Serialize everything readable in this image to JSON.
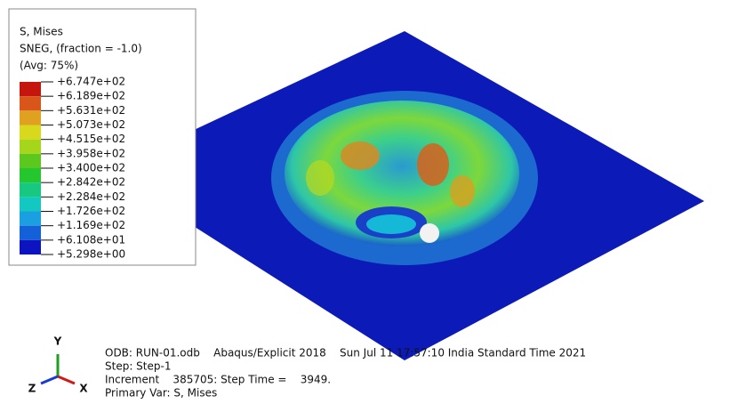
{
  "legend": {
    "title_lines": [
      "S, Mises",
      "SNEG, (fraction = -1.0)",
      "(Avg: 75%)"
    ],
    "labels": [
      "+6.747e+02",
      "+6.189e+02",
      "+5.631e+02",
      "+5.073e+02",
      "+4.515e+02",
      "+3.958e+02",
      "+3.400e+02",
      "+2.842e+02",
      "+2.284e+02",
      "+1.726e+02",
      "+1.169e+02",
      "+6.108e+01",
      "+5.298e+00"
    ],
    "colors": [
      "#c4160c",
      "#d9561a",
      "#e0a020",
      "#d8d81c",
      "#a6d61a",
      "#5cc81e",
      "#24c82e",
      "#16c880",
      "#12c8c0",
      "#1aa0e0",
      "#1460d8",
      "#0c14c0"
    ]
  },
  "info": {
    "lines": [
      "ODB: RUN-01.odb    Abaqus/Explicit 2018    Sun Jul 11 17:57:10 India Standard Time 2021",
      "Step: Step-1",
      "Increment    385705: Step Time =    3949.",
      "Primary Var: S, Mises"
    ]
  },
  "triad": {
    "x": "X",
    "y": "Y",
    "z": "Z"
  }
}
